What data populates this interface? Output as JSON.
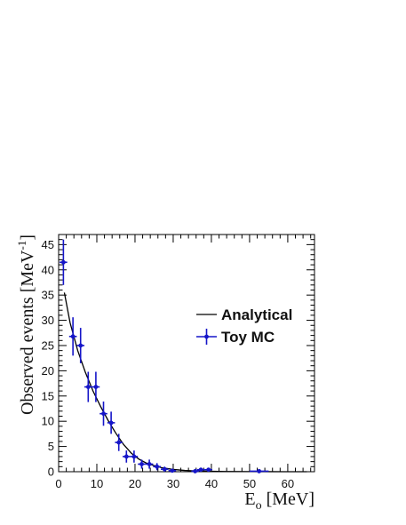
{
  "chart_data": {
    "type": "scatter",
    "xlabel": "E",
    "xlabel_sub": "o",
    "xlabel_unit": " [MeV]",
    "ylabel": "Observed events [MeV",
    "ylabel_sup": "-1",
    "ylabel_close": "]",
    "xlim": [
      0,
      67
    ],
    "ylim": [
      0,
      47
    ],
    "x_ticks": [
      0,
      10,
      20,
      30,
      40,
      50,
      60
    ],
    "y_ticks": [
      0,
      5,
      10,
      15,
      20,
      25,
      30,
      35,
      40,
      45
    ],
    "grid": false,
    "legend_position": "center-right",
    "series": [
      {
        "name": "Analytical",
        "kind": "line",
        "color": "#000000",
        "x": [
          1.5,
          3,
          5,
          7,
          9,
          11,
          13,
          15,
          17,
          19,
          21,
          23,
          25,
          27,
          30,
          33,
          36,
          40,
          45,
          50,
          55,
          60,
          65
        ],
        "y": [
          35.5,
          29.5,
          24,
          19.7,
          16,
          12.9,
          10.1,
          7.6,
          5.4,
          3.7,
          2.5,
          1.7,
          1.2,
          0.8,
          0.45,
          0.25,
          0.15,
          0.08,
          0.04,
          0.02,
          0.01,
          0.0,
          0.0
        ]
      },
      {
        "name": "Toy MC",
        "kind": "points",
        "color": "#1515c8",
        "x": [
          1.25,
          3.75,
          5.75,
          7.75,
          9.75,
          11.75,
          13.75,
          15.75,
          17.75,
          19.75,
          21.75,
          23.75,
          25.75,
          27.75,
          29.75,
          35.75,
          37.25,
          39.25,
          52.5
        ],
        "xerr": [
          1.0,
          1.0,
          1.0,
          1.0,
          1.0,
          1.0,
          1.0,
          1.0,
          1.0,
          1.0,
          1.0,
          1.0,
          1.0,
          1.0,
          1.0,
          1.0,
          1.0,
          1.0,
          2.5
        ],
        "y": [
          41.5,
          26.8,
          25,
          16.8,
          16.8,
          11.5,
          9.7,
          5.8,
          3.0,
          3.0,
          1.5,
          1.5,
          1.0,
          0.5,
          0.2,
          0.1,
          0.4,
          0.4,
          0.1
        ],
        "yerr": [
          4.5,
          3.8,
          3.5,
          3.0,
          3.0,
          2.4,
          2.2,
          1.7,
          1.2,
          1.2,
          0.9,
          0.9,
          0.7,
          0.5,
          0.3,
          0.2,
          0.4,
          0.4,
          0.1
        ]
      }
    ]
  }
}
